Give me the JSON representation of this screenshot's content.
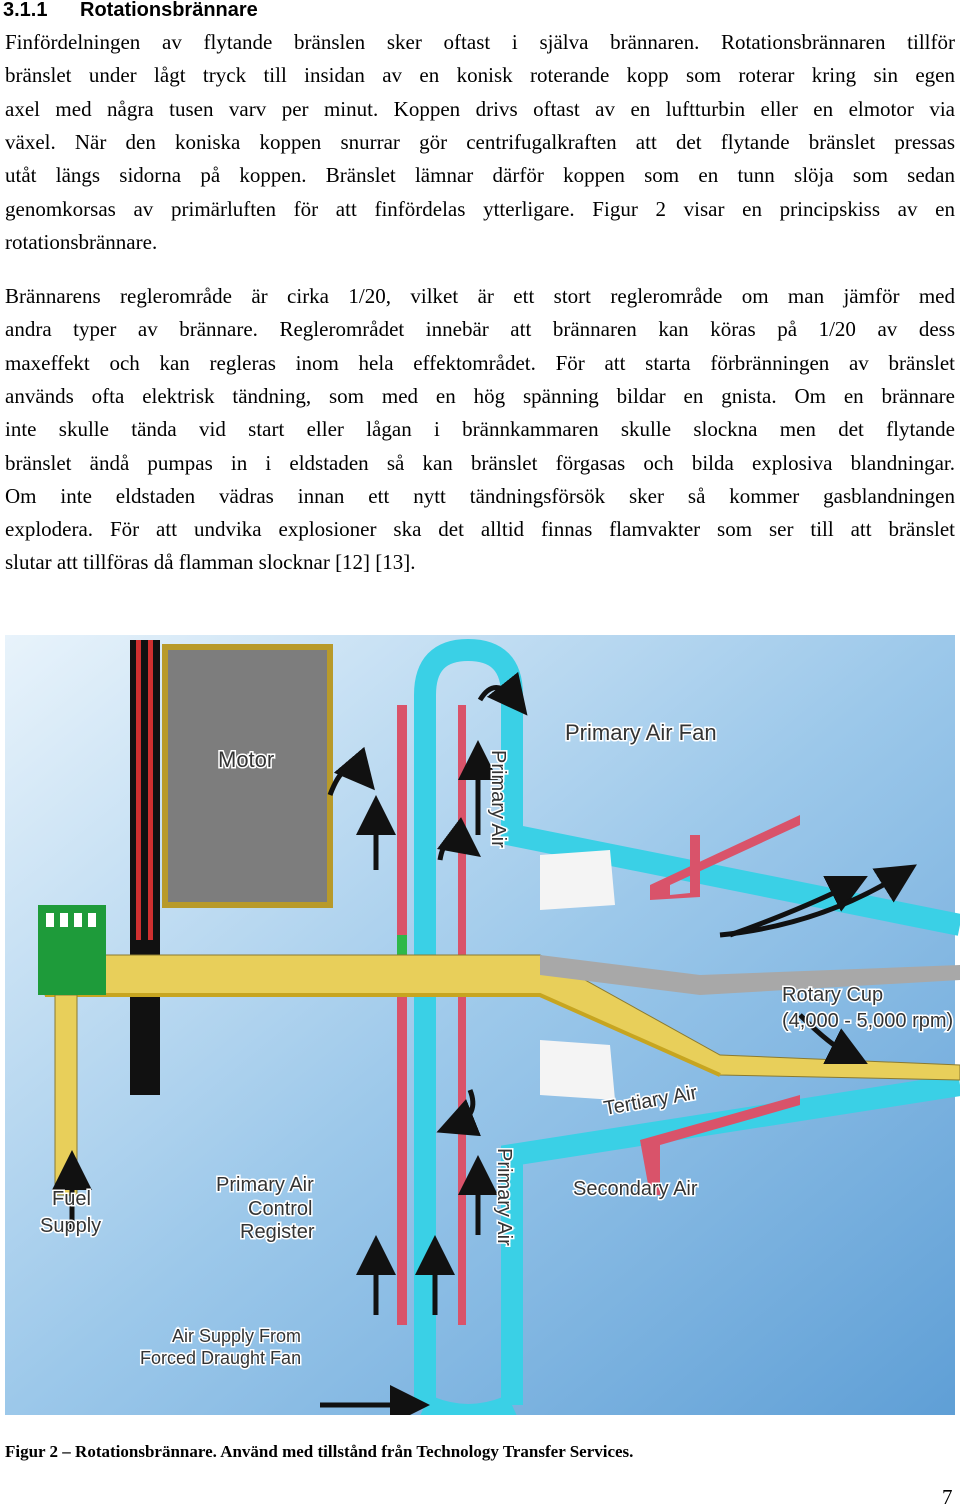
{
  "heading": {
    "number": "3.1.1",
    "title": "Rotationsbrännare"
  },
  "paragraphs": [
    {
      "lines": [
        "Finfördelningen av flytande bränslen sker oftast i själva brännaren. Rotationsbrännaren tillför",
        "bränslet under lågt tryck till insidan av en konisk roterande kopp som roterar kring sin egen",
        "axel med några tusen varv per minut. Koppen drivs oftast av en luftturbin eller en elmotor via",
        "växel. När den koniska koppen snurrar gör centrifugalkraften att det flytande bränslet pressas",
        "utåt längs sidorna på koppen. Bränslet lämnar därför koppen som en tunn slöja som sedan",
        "genomkorsas av primärluften för att finfördelas ytterligare. Figur 2 visar en principskiss av en",
        "rotationsbrännare."
      ]
    },
    {
      "lines": [
        "Brännarens reglerområde är cirka 1/20, vilket är ett stort reglerområde om man jämför med",
        "andra typer av brännare. Reglerområdet innebär att brännaren kan köras på 1/20 av dess",
        "maxeffekt och kan regleras inom hela effektområdet. För att starta förbränningen av bränslet",
        "används ofta elektrisk tändning, som med en hög spänning bildar en gnista. Om en brännare",
        "inte skulle tända vid start eller lågan i brännkammaren skulle slockna men det flytande",
        "bränslet ändå pumpas in i eldstaden så kan bränslet förgasas och bilda explosiva blandningar.",
        "Om inte eldstaden vädras innan ett nytt tändningsförsök sker så kommer gasblandningen",
        "explodera.  För att undvika explosioner ska det alltid finnas flamvakter som ser till att bränslet",
        "slutar att tillföras då flamman slocknar [12] [13]."
      ]
    }
  ],
  "figure": {
    "labels": {
      "motor": "Motor",
      "primary_air_fan": "Primary Air Fan",
      "primary_air_top": "Primary Air",
      "primary_air_bottom": "Primary Air",
      "rotary_cup": [
        "Rotary Cup",
        "(4,000 - 5,000 rpm)"
      ],
      "tertiary_air": "Tertiary Air",
      "secondary_air": "Secondary Air",
      "fuel_supply": [
        "Fuel",
        "Supply"
      ],
      "register": [
        "Primary Air",
        "Control",
        "Register"
      ],
      "air_supply": [
        "Air Supply From",
        "Forced Draught Fan"
      ]
    },
    "caption": "Figur 2 – Rotationsbrännare. Använd med tillstånd från Technology Transfer Services."
  },
  "page_number": "7"
}
